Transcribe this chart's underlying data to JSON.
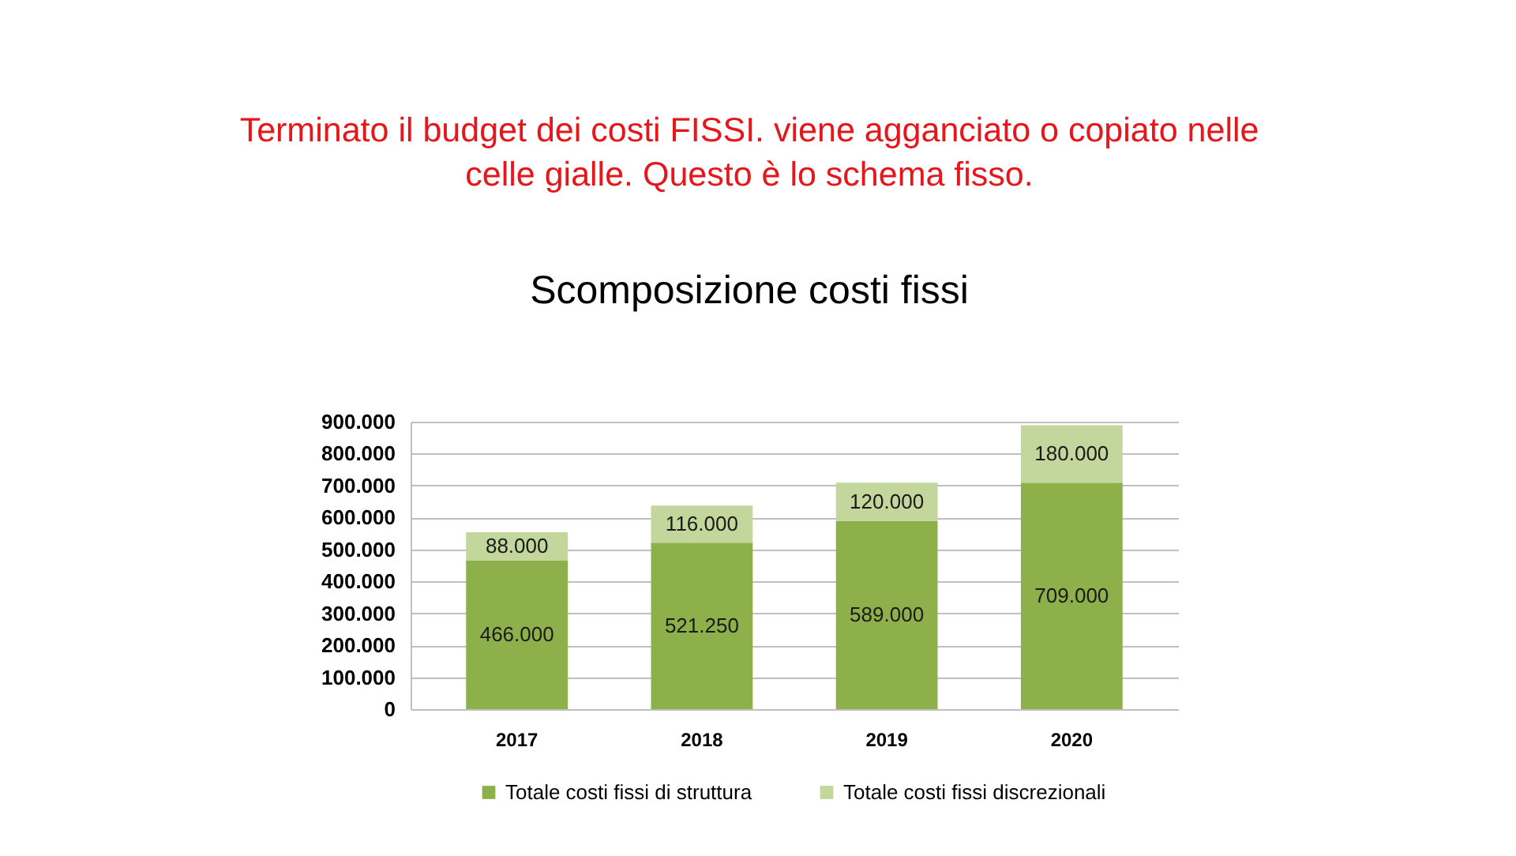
{
  "chart_data": {
    "type": "bar",
    "title": "Scomposizione costi fissi",
    "annotations": [
      "Terminato il budget dei costi FISSI. viene agganciato o copiato nelle celle gialle. Questo è lo schema fisso."
    ],
    "categories": [
      "2017",
      "2018",
      "2019",
      "2020"
    ],
    "stacked": true,
    "series": [
      {
        "name": "Totale costi fissi di struttura",
        "color": "#8db04a",
        "values": [
          466000,
          521250,
          589000,
          709000
        ],
        "value_labels": [
          "466.000",
          "521.250",
          "589.000",
          "709.000"
        ]
      },
      {
        "name": "Totale costi fissi discrezionali",
        "color": "#c3d69b",
        "values": [
          88000,
          116000,
          120000,
          180000
        ],
        "value_labels": [
          "88.000",
          "116.000",
          "120.000",
          "180.000"
        ]
      }
    ],
    "ylim": [
      0,
      900000
    ],
    "yticks": [
      0,
      {
        "value": 100000,
        "label": "100.000"
      },
      {
        "value": 200000,
        "label": "200.000"
      },
      {
        "value": 300000,
        "label": "300.000"
      },
      {
        "value": 400000,
        "label": "400.000"
      },
      {
        "value": 500000,
        "label": "500.000"
      },
      {
        "value": 600000,
        "label": "600.000"
      },
      {
        "value": 700000,
        "label": "700.000"
      },
      {
        "value": 800000,
        "label": "800.000"
      },
      {
        "value": 900000,
        "label": "900.000"
      }
    ],
    "grid": "y",
    "legend": "bottom"
  }
}
